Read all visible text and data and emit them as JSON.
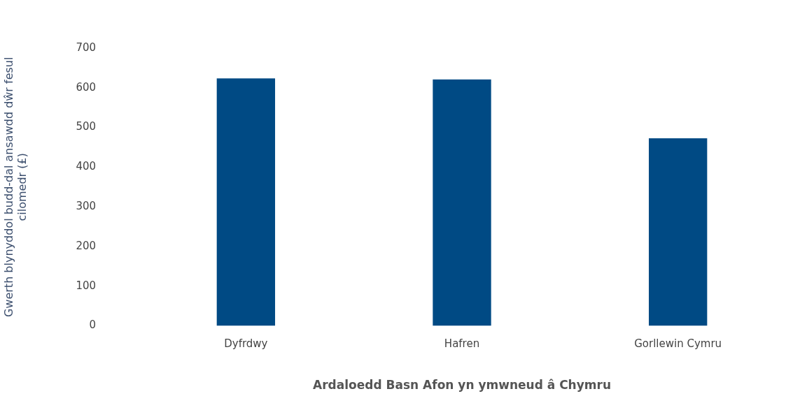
{
  "chart_data": {
    "type": "bar",
    "xlabel": "Ardaloedd Basn Afon yn ymwneud â Chymru",
    "ylabel": "Gwerth blynyddol budd-dal ansawdd dŵr fesul cilomedr (£)",
    "categories": [
      "Dyfrdwy",
      "Hafren",
      "Gorllewin Cymru"
    ],
    "values": [
      624,
      621,
      473
    ],
    "color": "#004a84",
    "ylim": [
      0,
      700
    ],
    "yticks": [
      0,
      100,
      200,
      300,
      400,
      500,
      600,
      700
    ],
    "grid": false,
    "legend": false
  }
}
